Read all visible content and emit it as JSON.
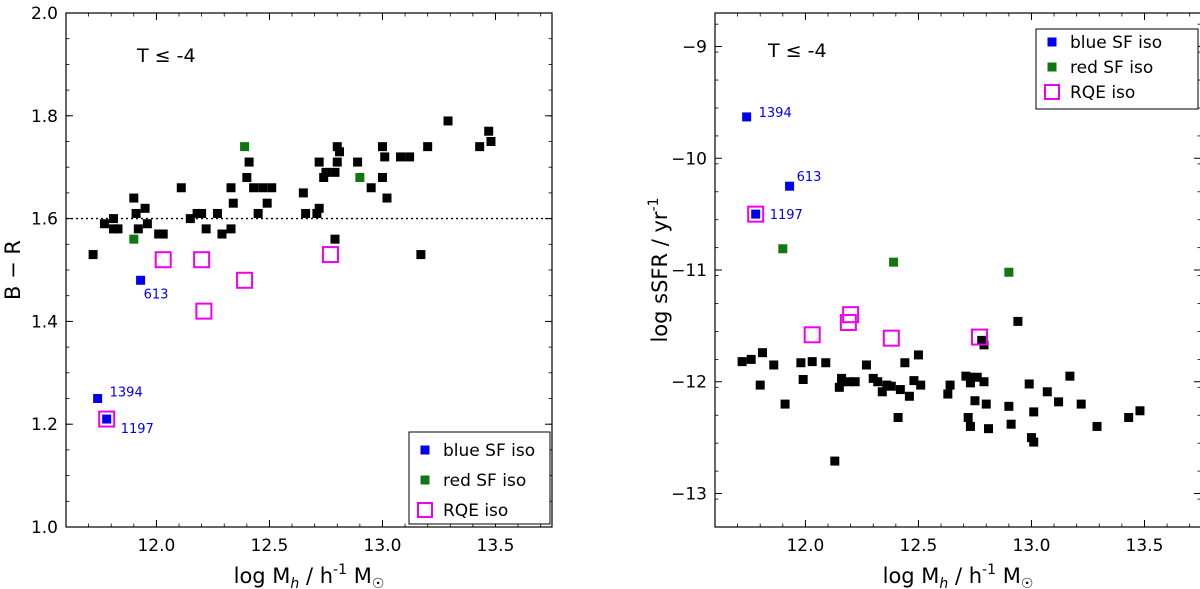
{
  "chart_data": [
    {
      "type": "scatter",
      "panel": "left",
      "xlabel_main": "log M",
      "xlabel_sub": "h",
      "xlabel_mid": " / h",
      "xlabel_sup": "-1",
      "xlabel_end": " M",
      "xlabel_sun": "☉",
      "ylabel": "B − R",
      "xlim": [
        11.6,
        13.75
      ],
      "ylim": [
        1.0,
        2.0
      ],
      "xticks": [
        "12.0",
        "12.5",
        "13.0",
        "13.5"
      ],
      "yticks": [
        "1.0",
        "1.2",
        "1.4",
        "1.6",
        "1.8",
        "2.0"
      ],
      "xtick_values": [
        12.0,
        12.5,
        13.0,
        13.5
      ],
      "ytick_values": [
        1.0,
        1.2,
        1.4,
        1.6,
        1.8,
        2.0
      ],
      "hline": 1.6,
      "annotation": "T  ≤  -4",
      "legend": {
        "placement": "bottom-right",
        "entries": [
          "blue SF iso",
          "red SF iso",
          "RQE iso"
        ]
      },
      "series": [
        {
          "name": "all",
          "color": "#000000",
          "x": [
            11.72,
            11.77,
            11.81,
            11.81,
            11.83,
            11.9,
            11.91,
            11.92,
            11.95,
            11.96,
            12.01,
            12.03,
            12.11,
            12.15,
            12.18,
            12.2,
            12.22,
            12.27,
            12.29,
            12.33,
            12.33,
            12.34,
            12.4,
            12.41,
            12.43,
            12.45,
            12.47,
            12.49,
            12.51,
            12.65,
            12.66,
            12.71,
            12.72,
            12.72,
            12.74,
            12.75,
            12.79,
            12.79,
            12.8,
            12.8,
            12.81,
            12.89,
            12.95,
            13.0,
            13.0,
            13.01,
            13.02,
            13.08,
            13.12,
            13.17,
            13.2,
            13.29,
            13.43,
            13.48,
            13.47
          ],
          "y": [
            1.53,
            1.59,
            1.58,
            1.6,
            1.58,
            1.64,
            1.61,
            1.58,
            1.62,
            1.59,
            1.57,
            1.57,
            1.66,
            1.6,
            1.61,
            1.61,
            1.58,
            1.61,
            1.57,
            1.58,
            1.66,
            1.63,
            1.68,
            1.71,
            1.66,
            1.61,
            1.66,
            1.63,
            1.66,
            1.65,
            1.61,
            1.61,
            1.62,
            1.71,
            1.68,
            1.69,
            1.56,
            1.69,
            1.71,
            1.74,
            1.73,
            1.71,
            1.66,
            1.74,
            1.68,
            1.72,
            1.64,
            1.72,
            1.72,
            1.53,
            1.74,
            1.79,
            1.74,
            1.75,
            1.77
          ]
        },
        {
          "name": "blue SF iso",
          "color": "#0000ee",
          "x": [
            11.74,
            11.78,
            11.93
          ],
          "y": [
            1.25,
            1.21,
            1.48
          ],
          "labels": [
            "1394",
            "1197",
            "613"
          ]
        },
        {
          "name": "red SF iso",
          "color": "#117711",
          "x": [
            11.9,
            12.39,
            12.9
          ],
          "y": [
            1.56,
            1.74,
            1.68
          ]
        },
        {
          "name": "RQE iso",
          "color": "#ee00ee",
          "x": [
            11.78,
            12.03,
            12.2,
            12.21,
            12.39,
            12.77
          ],
          "y": [
            1.21,
            1.52,
            1.52,
            1.42,
            1.48,
            1.53
          ]
        }
      ]
    },
    {
      "type": "scatter",
      "panel": "right",
      "xlabel_main": "log M",
      "xlabel_sub": "h",
      "xlabel_mid": " / h",
      "xlabel_sup": "-1",
      "xlabel_end": " M",
      "xlabel_sun": "☉",
      "ylabel_main": "log sSFR / yr",
      "ylabel_sup": "-1",
      "xlim": [
        11.6,
        13.75
      ],
      "ylim": [
        -13.3,
        -8.7
      ],
      "xticks": [
        "12.0",
        "12.5",
        "13.0",
        "13.5"
      ],
      "yticks": [
        "−13",
        "−12",
        "−11",
        "−10",
        "−9"
      ],
      "xtick_values": [
        12.0,
        12.5,
        13.0,
        13.5
      ],
      "ytick_values": [
        -13,
        -12,
        -11,
        -10,
        -9
      ],
      "annotation": "T  ≤  -4",
      "legend": {
        "placement": "top-right",
        "entries": [
          "blue SF iso",
          "red SF iso",
          "RQE iso"
        ]
      },
      "series": [
        {
          "name": "all",
          "color": "#000000",
          "x": [
            11.72,
            11.76,
            11.8,
            11.81,
            11.86,
            11.91,
            11.98,
            11.99,
            12.03,
            12.09,
            12.13,
            12.15,
            12.16,
            12.16,
            12.19,
            12.22,
            12.27,
            12.3,
            12.32,
            12.34,
            12.36,
            12.38,
            12.41,
            12.42,
            12.44,
            12.46,
            12.48,
            12.5,
            12.51,
            12.63,
            12.64,
            12.71,
            12.72,
            12.73,
            12.73,
            12.73,
            12.75,
            12.76,
            12.78,
            12.79,
            12.79,
            12.8,
            12.81,
            12.9,
            12.91,
            12.94,
            12.99,
            13.0,
            13.01,
            13.01,
            13.07,
            13.12,
            13.17,
            13.22,
            13.29,
            13.43,
            13.48
          ],
          "y": [
            -11.82,
            -11.8,
            -12.03,
            -11.74,
            -11.85,
            -12.2,
            -11.83,
            -11.98,
            -11.82,
            -11.83,
            -12.71,
            -12.05,
            -12.0,
            -11.97,
            -12.0,
            -12.0,
            -11.85,
            -11.97,
            -12.0,
            -12.09,
            -12.03,
            -12.04,
            -12.32,
            -12.07,
            -11.83,
            -12.13,
            -11.99,
            -11.76,
            -12.03,
            -12.11,
            -12.03,
            -11.95,
            -12.32,
            -12.4,
            -12.01,
            -11.96,
            -12.17,
            -11.96,
            -11.63,
            -12.0,
            -11.67,
            -12.2,
            -12.42,
            -12.22,
            -12.38,
            -11.46,
            -12.02,
            -12.5,
            -12.54,
            -12.27,
            -12.09,
            -12.18,
            -11.95,
            -12.2,
            -12.4,
            -12.32,
            -12.26
          ]
        },
        {
          "name": "blue SF iso",
          "color": "#0000ee",
          "x": [
            11.74,
            11.93,
            11.78
          ],
          "y": [
            -9.63,
            -10.25,
            -10.5
          ],
          "labels": [
            "1394",
            "613",
            "1197"
          ]
        },
        {
          "name": "red SF iso",
          "color": "#117711",
          "x": [
            11.9,
            12.39,
            12.9
          ],
          "y": [
            -10.81,
            -10.93,
            -11.02
          ]
        },
        {
          "name": "RQE iso",
          "color": "#ee00ee",
          "x": [
            11.78,
            12.03,
            12.19,
            12.2,
            12.38,
            12.77
          ],
          "y": [
            -10.5,
            -11.58,
            -11.47,
            -11.4,
            -11.61,
            -11.6
          ]
        }
      ]
    }
  ]
}
